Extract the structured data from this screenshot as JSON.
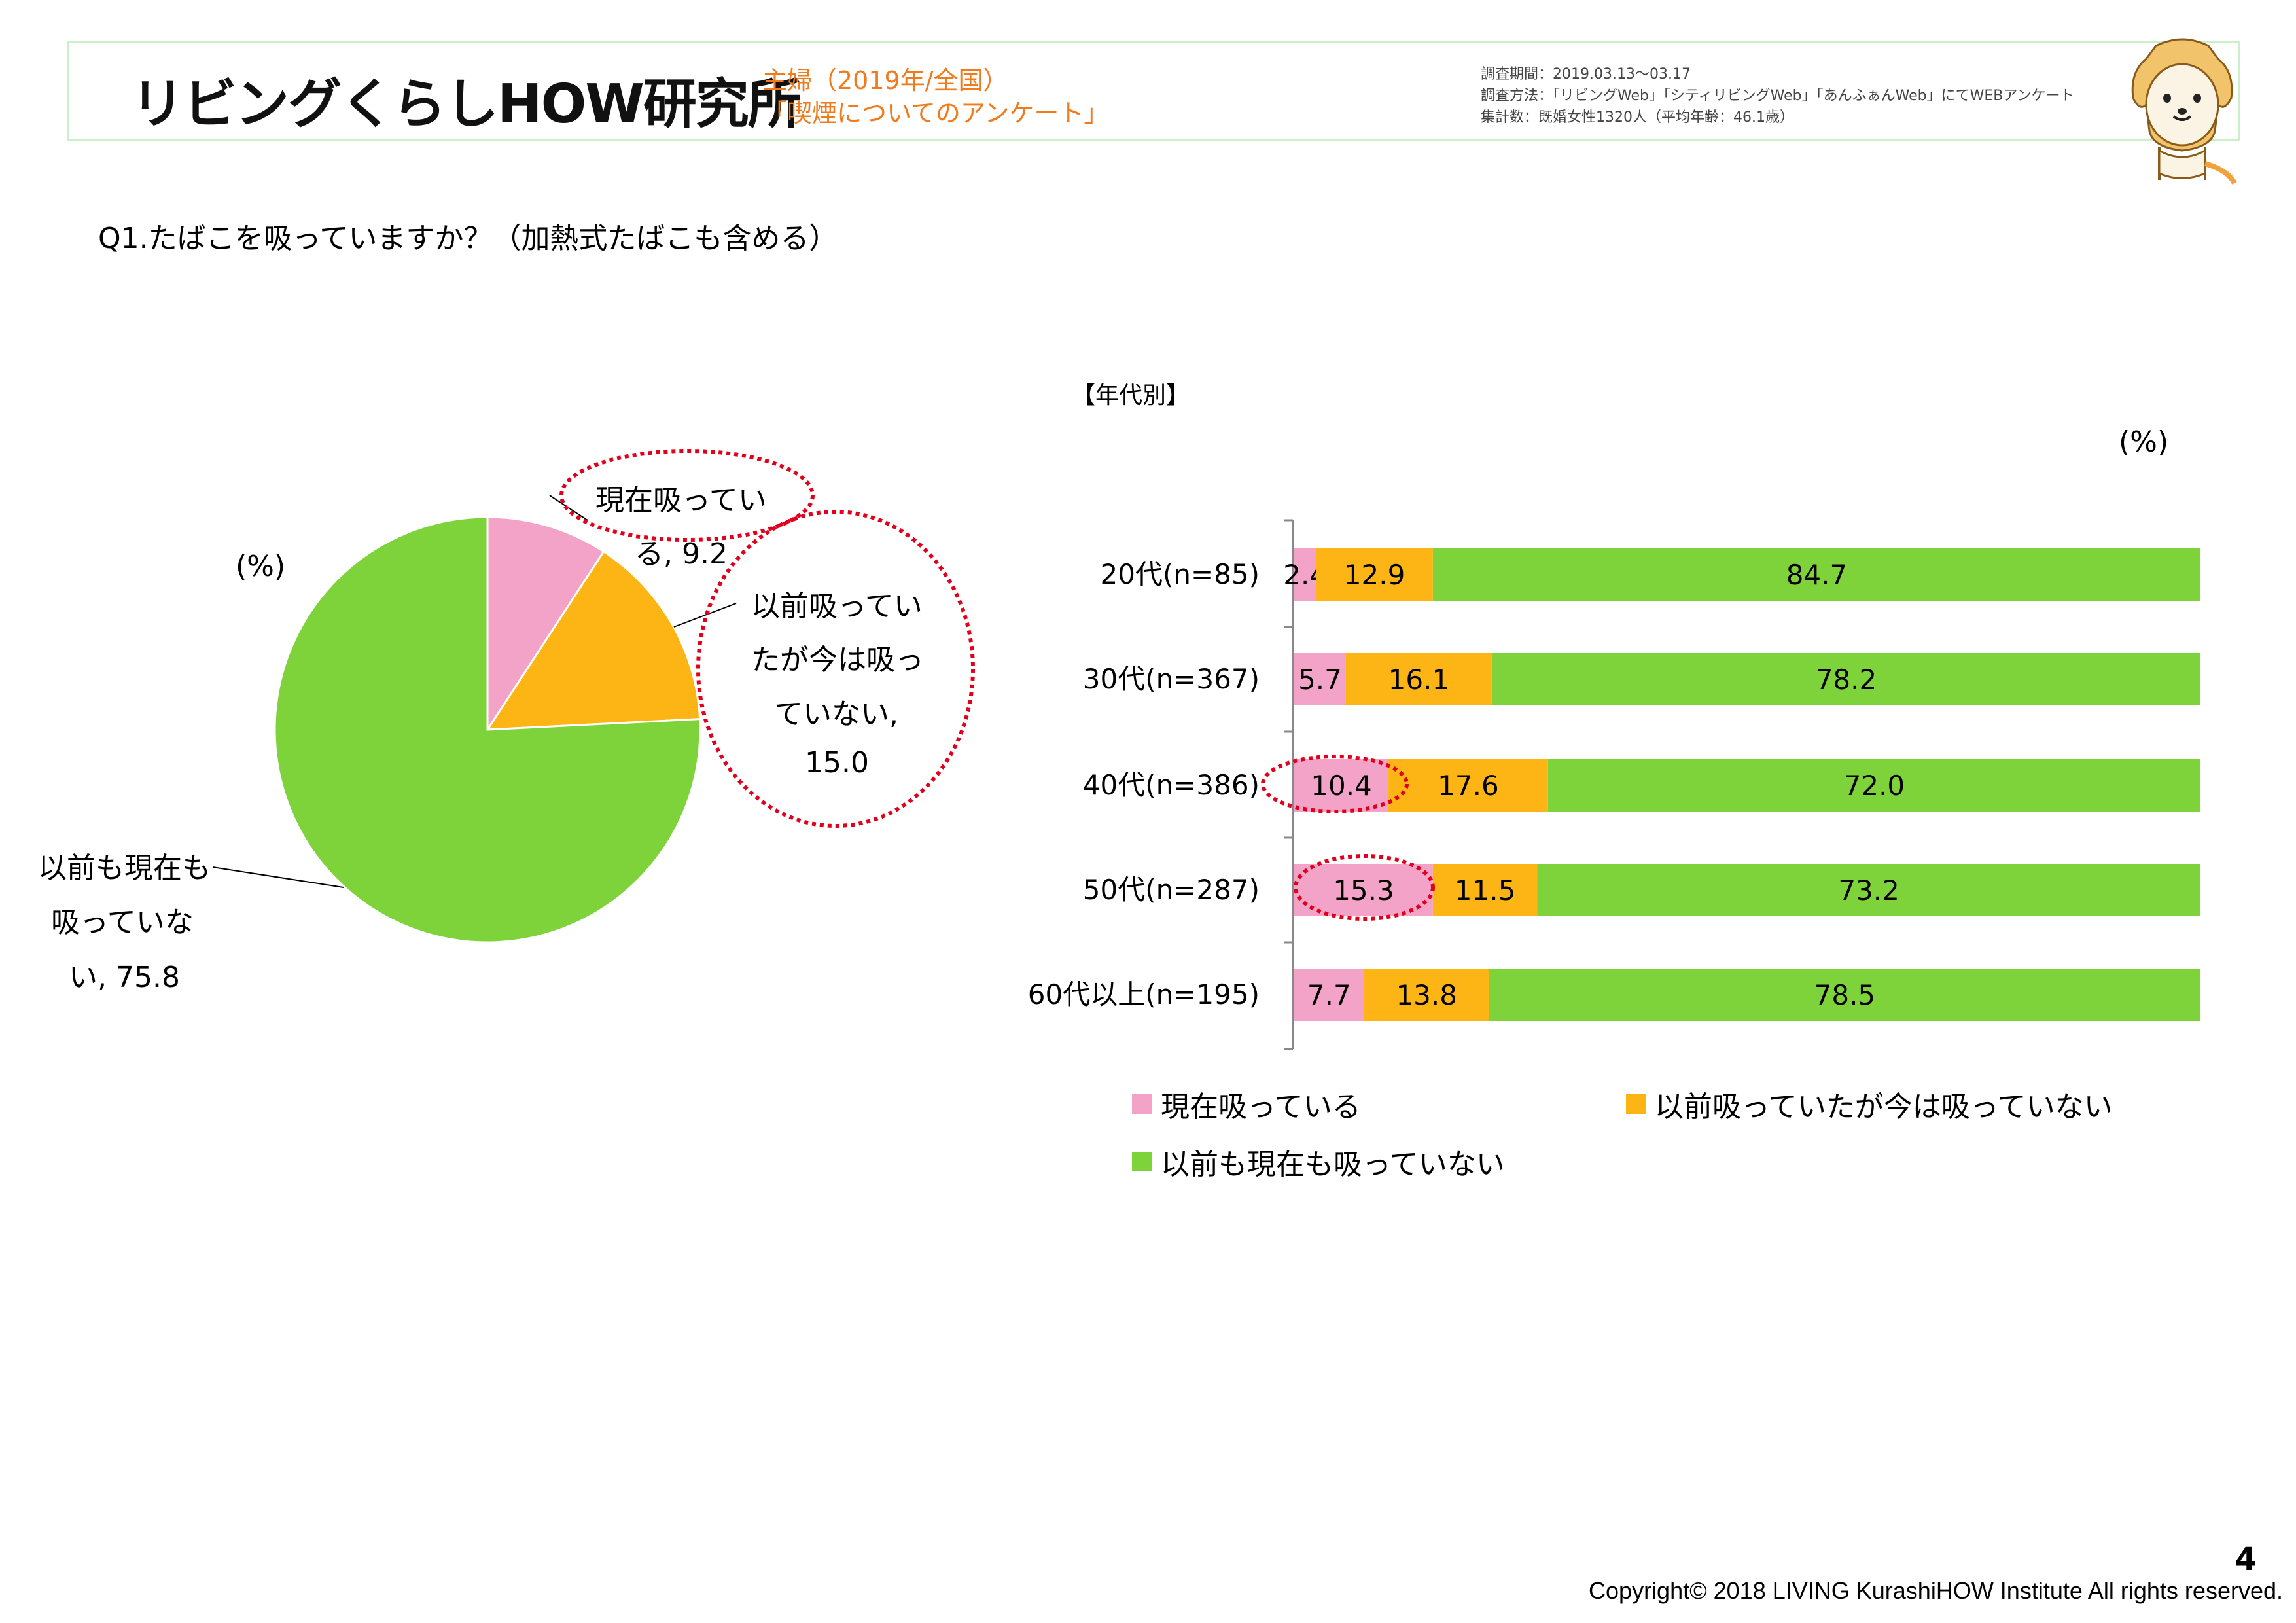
{
  "header": {
    "logo_text": "リビングくらしHOW研究所",
    "subtitle_line1": "主婦（2019年/全国）",
    "subtitle_line2": "「喫煙についてのアンケート」",
    "survey_period": "調査期間：2019.03.13〜03.17",
    "survey_method": "調査方法：「リビングWeb」「シティリビングWeb」「あんふぁんWeb」にてWEBアンケート",
    "survey_count": "集計数：既婚女性1320人（平均年齢：46.1歳）"
  },
  "question": "Q1.たばこを吸っていますか？（加熱式たばこも含める）",
  "pie": {
    "unit_label": "(%)",
    "label_smoking_line1": "現在吸ってい",
    "label_smoking_line2": "る, 9.2",
    "label_quit_line1": "以前吸ってい",
    "label_quit_line2": "たが今は吸っ",
    "label_quit_line3": "ていない,",
    "label_quit_line4": "15.0",
    "label_never_line1": "以前も現在も",
    "label_never_line2": "吸っていな",
    "label_never_line3": "い, 75.8"
  },
  "bar": {
    "section_label": "【年代別】",
    "unit_label": "(%)"
  },
  "legend": {
    "smoking": "現在吸っている",
    "quit": "以前吸っていたが今は吸っていない",
    "never": "以前も現在も吸っていない"
  },
  "colors": {
    "smoking": "#f4a3c8",
    "quit": "#fdb515",
    "never": "#7ed33a",
    "highlight": "#e0001b"
  },
  "chart_data": [
    {
      "type": "pie",
      "categories": [
        "現在吸っている",
        "以前吸っていたが今は吸っていない",
        "以前も現在も吸っていない"
      ],
      "values": [
        9.2,
        15.0,
        75.8
      ]
    },
    {
      "type": "bar",
      "stacked": true,
      "orientation": "horizontal",
      "categories": [
        "20代(n=85)",
        "30代(n=367)",
        "40代(n=386)",
        "50代(n=287)",
        "60代以上(n=195)"
      ],
      "series": [
        {
          "name": "現在吸っている",
          "values": [
            2.4,
            5.7,
            10.4,
            15.3,
            7.7
          ]
        },
        {
          "name": "以前吸っていたが今は吸っていない",
          "values": [
            12.9,
            16.1,
            17.6,
            11.5,
            13.8
          ]
        },
        {
          "name": "以前も現在も吸っていない",
          "values": [
            84.7,
            78.2,
            72.0,
            73.2,
            78.5
          ]
        }
      ],
      "xlim": [
        0,
        100
      ]
    }
  ],
  "footer": {
    "page_number": "4",
    "copyright": "Copyright© 2018 LIVING KurashiHOW Institute All rights reserved."
  }
}
